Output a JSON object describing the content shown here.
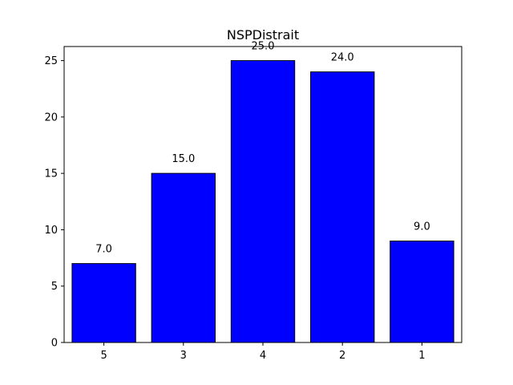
{
  "chart_data": {
    "type": "bar",
    "title": "NSPDistrait",
    "xlabel": "",
    "ylabel": "",
    "categories": [
      "5",
      "3",
      "4",
      "2",
      "1"
    ],
    "values": [
      7.0,
      15.0,
      25.0,
      24.0,
      9.0
    ],
    "data_labels": [
      "7.0",
      "15.0",
      "25.0",
      "24.0",
      "9.0"
    ],
    "ylim": [
      0,
      26.25
    ],
    "yticks": [
      0,
      5,
      10,
      15,
      20,
      25
    ],
    "ytick_labels": [
      "0",
      "5",
      "10",
      "15",
      "20",
      "25"
    ],
    "grid": false,
    "legend": "none",
    "bar_color": "#0000ff",
    "bar_edge_color": "#000000"
  }
}
